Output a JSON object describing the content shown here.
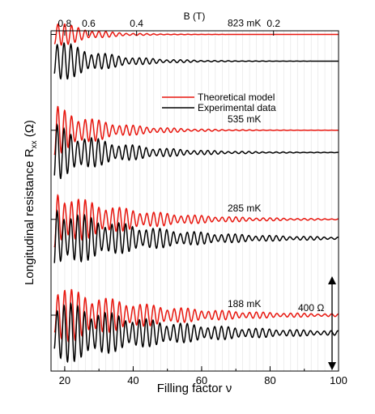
{
  "chart_data": {
    "type": "line",
    "xlabel": "Filling factor ν",
    "ylabel": "Longitudinal resistance R",
    "ylabel_subscript": "xx",
    "ylabel_unit": " (Ω)",
    "x_top_label": "B (T)",
    "xlim": [
      16,
      100
    ],
    "x_ticks": [
      "20",
      "40",
      "60",
      "80",
      "100"
    ],
    "x_top_ticks": [
      "0.8",
      "0.6",
      "0.4",
      "0.2"
    ],
    "x_top_tick_positions_nu": [
      20,
      27,
      41,
      81
    ],
    "grid": false,
    "legend": {
      "position": "center-right",
      "entries": [
        {
          "label": "Theoretical model",
          "color": "#e8170f"
        },
        {
          "label": "Experimental data",
          "color": "#000000"
        }
      ]
    },
    "scale_bar": {
      "label": "400 Ω",
      "ohms": 400
    },
    "colors": {
      "theory": "#e8170f",
      "experiment": "#000000"
    },
    "panels": [
      {
        "temperature": "823 mK",
        "series": [
          {
            "name": "Theoretical model",
            "baseline_ohm": 1500,
            "amp0_ohm": 70,
            "decay_nu": 9
          },
          {
            "name": "Experimental data",
            "baseline_ohm": 1380,
            "amp0_ohm": 110,
            "decay_nu": 13
          }
        ]
      },
      {
        "temperature": "535 mK",
        "series": [
          {
            "name": "Theoretical model",
            "baseline_ohm": 1070,
            "amp0_ohm": 115,
            "decay_nu": 14
          },
          {
            "name": "Experimental data",
            "baseline_ohm": 970,
            "amp0_ohm": 130,
            "decay_nu": 17
          }
        ]
      },
      {
        "temperature": "285 mK",
        "series": [
          {
            "name": "Theoretical model",
            "baseline_ohm": 670,
            "amp0_ohm": 135,
            "decay_nu": 21
          },
          {
            "name": "Experimental data",
            "baseline_ohm": 585,
            "amp0_ohm": 145,
            "decay_nu": 26
          }
        ]
      },
      {
        "temperature": "188 mK",
        "series": [
          {
            "name": "Theoretical model",
            "baseline_ohm": 240,
            "amp0_ohm": 140,
            "decay_nu": 26
          },
          {
            "name": "Experimental data",
            "baseline_ohm": 160,
            "amp0_ohm": 155,
            "decay_nu": 30
          }
        ]
      }
    ]
  }
}
